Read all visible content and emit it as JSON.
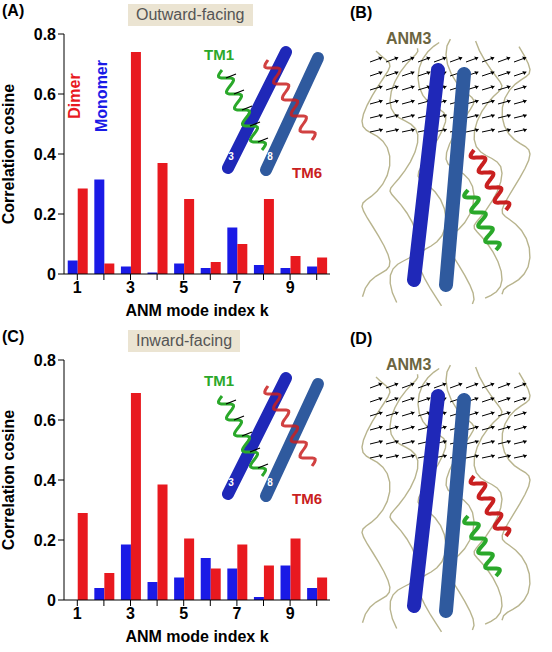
{
  "chart_data": [
    {
      "type": "bar",
      "panel": "(A)",
      "title": "Outward-facing",
      "categories": [
        "1",
        null,
        "3",
        null,
        "5",
        null,
        "7",
        null,
        "9",
        null
      ],
      "series": [
        {
          "name": "Monomer",
          "color": "#1a1ae6",
          "values": [
            0.045,
            0.315,
            0.025,
            0.005,
            0.035,
            0.02,
            0.155,
            0.03,
            0.02,
            0.025
          ]
        },
        {
          "name": "Dimer",
          "color": "#e8191f",
          "values": [
            0.285,
            0.035,
            0.74,
            0.37,
            0.25,
            0.04,
            0.1,
            0.25,
            0.06,
            0.055
          ]
        }
      ],
      "x_label": "ANM mode index k",
      "y_label": "Correlation cosine",
      "ylim": [
        0,
        0.8
      ],
      "yticks": [
        0,
        0.2,
        0.4,
        0.6,
        0.8
      ],
      "legend": "top left",
      "inset_labels": [
        "TM1",
        "TM6",
        "3",
        "8"
      ]
    },
    {
      "type": "bar",
      "panel": "(C)",
      "title": "Inward-facing",
      "categories": [
        "1",
        null,
        "3",
        null,
        "5",
        null,
        "7",
        null,
        "9",
        null
      ],
      "series": [
        {
          "name": "Monomer",
          "color": "#1a1ae6",
          "values": [
            0.0,
            0.04,
            0.185,
            0.06,
            0.075,
            0.14,
            0.105,
            0.01,
            0.115,
            0.04
          ]
        },
        {
          "name": "Dimer",
          "color": "#e8191f",
          "values": [
            0.29,
            0.09,
            0.69,
            0.385,
            0.205,
            0.105,
            0.185,
            0.115,
            0.205,
            0.075
          ]
        }
      ],
      "x_label": "ANM mode index k",
      "y_label": "Correlation cosine",
      "ylim": [
        0,
        0.8
      ],
      "yticks": [
        0,
        0.2,
        0.4,
        0.6,
        0.8
      ],
      "inset_labels": [
        "TM1",
        "TM6",
        "3",
        "8"
      ]
    }
  ],
  "diagrams": [
    {
      "panel": "(B)",
      "label": "ANM3"
    },
    {
      "panel": "(D)",
      "label": "ANM3"
    }
  ]
}
